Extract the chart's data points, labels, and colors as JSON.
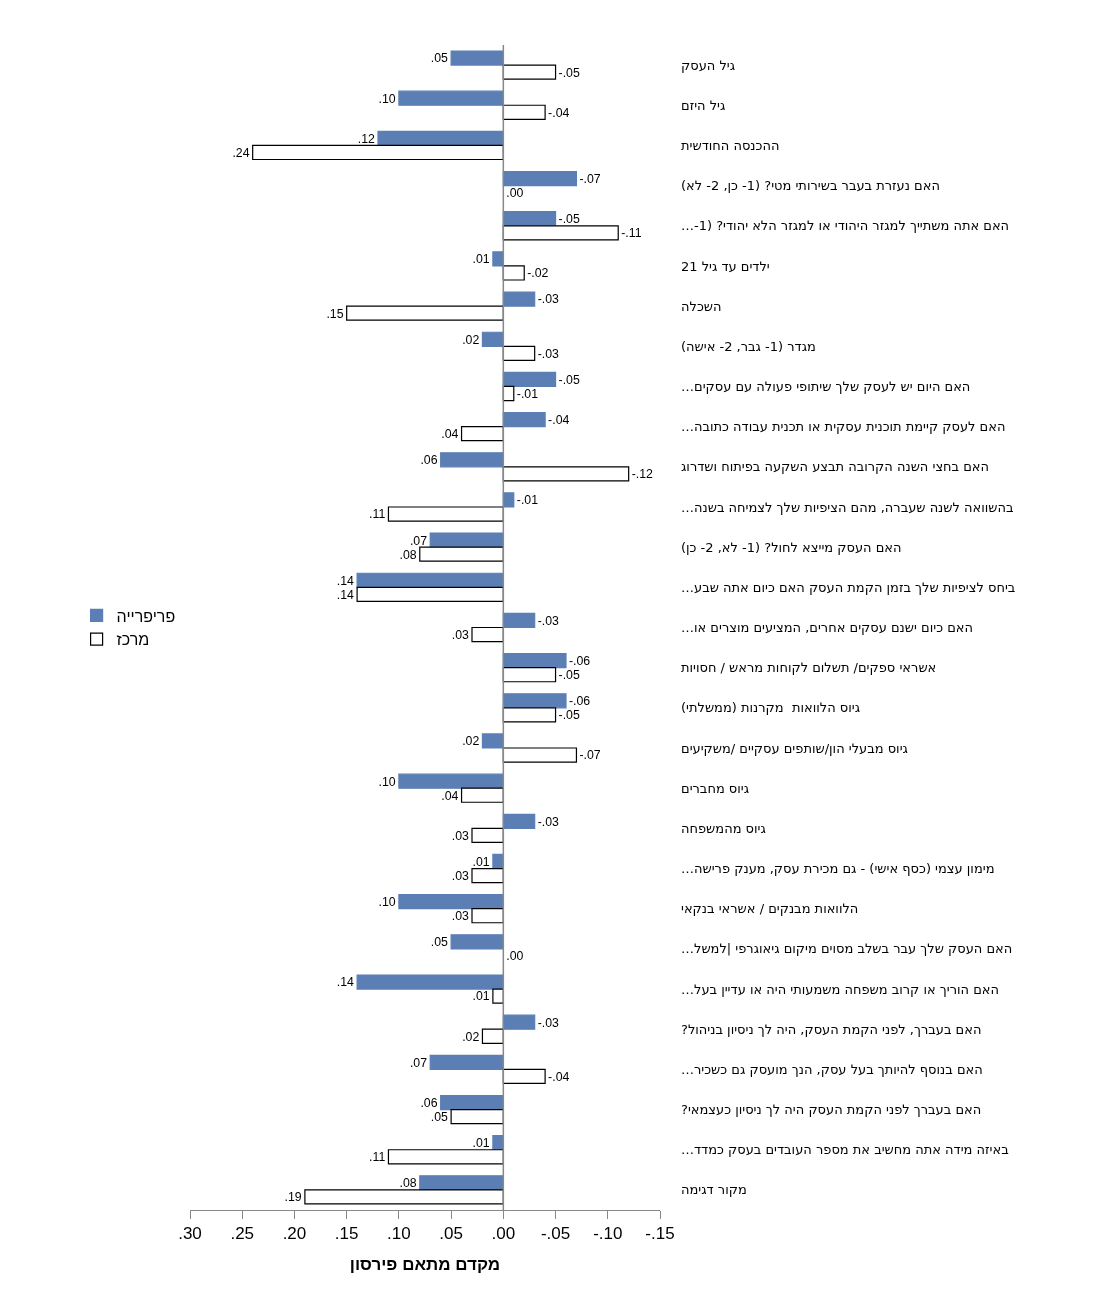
{
  "chart_data": {
    "type": "bar",
    "orientation": "horizontal",
    "xlabel": "מקדם מתאם פירסון",
    "categories": [
      "גיל העסק",
      "גיל היזם",
      "ההכנסה החודשית",
      "האם נעזרת בעבר בשירותי מטי? (1- כן, 2- לא)",
      "האם אתה משתייך למגזר היהודי או למגזר הלא יהודי? (1-…",
      "ילדים עד גיל 21",
      "השכלה",
      "מגדר (1- גבר, 2- אישה)",
      "האם היום יש לעסק שלך שיתופי פעולה עם עסקים…",
      "האם לעסק קיימת תוכנית עסקית או תכנית עבודה כתובה…",
      "האם בחצי השנה הקרובה תבצע השקעה בפיתוח ושדרוג",
      "בהשוואה לשנה שעברה, מהם הציפיות שלך לצמיחה בשנה…",
      "האם העסק מייצא לחול? (1- לא, 2- כן)",
      "ביחס לציפיות שלך בזמן הקמת העסק האם כיום אתה שבע…",
      "האם כיום ישנם עסקים אחרים, המציעים מוצרים או…",
      "אשראי ספקים/ תשלום לקוחות מראש / חסויות",
      "גיוס הלוואות  מקרנות (ממשלתי)",
      "גיוס מבעלי הון/שותפים עסקיים /משקיעים",
      "גיוס מחברים",
      "גיוס מהמשפחה",
      "מימון עצמי (כסף אישי) - גם מכירת עסק, מענק פרישה…",
      "הלוואות מבנקים / אשראי בנקאי",
      "האם העסק שלך עבר בשלב מסוים מיקום גיאוגרפי |למשל…",
      "האם הוריך או קרוב משפחה משמעותי היה או עדיין בעל…",
      "האם בעברך, לפני הקמת העסק, היה לך ניסיון בניהול?",
      "האם בנוסף להיותך בעל עסק, הנך מועסק גם כשכיר…",
      "האם בעברך לפני הקמת העסק היה לך ניסיון כעצמאי?",
      "באיזה מידה אתה מחשיב את מספר העובדים בעסק כמדד…",
      "מקור דגימה"
    ],
    "series": [
      {
        "name": "פריפרייה",
        "color": "#5b7fb5",
        "values": [
          0.05,
          0.1,
          0.12,
          -0.07,
          -0.05,
          0.01,
          -0.03,
          0.02,
          -0.05,
          -0.04,
          0.06,
          -0.01,
          0.07,
          0.14,
          -0.03,
          -0.06,
          -0.06,
          0.02,
          0.1,
          -0.03,
          0.01,
          0.1,
          0.05,
          0.14,
          -0.03,
          0.07,
          0.06,
          0.01,
          0.08
        ],
        "value_labels": [
          ".05",
          ".10",
          ".12",
          "-.07",
          "-.05",
          ".01",
          "-.03",
          ".02",
          "-.05",
          "-.04",
          ".06",
          "-.01",
          ".07",
          ".14",
          "-.03",
          "-.06",
          "-.06",
          ".02",
          ".10",
          "-.03",
          ".01",
          ".10",
          ".05",
          ".14",
          "-.03",
          ".07",
          ".06",
          ".01",
          ".08"
        ]
      },
      {
        "name": "מרכז",
        "color": "#ffffff",
        "values": [
          -0.05,
          -0.04,
          0.24,
          0.0,
          -0.11,
          -0.02,
          0.15,
          -0.03,
          -0.01,
          0.04,
          -0.12,
          0.11,
          0.08,
          0.14,
          0.03,
          -0.05,
          -0.05,
          -0.07,
          0.04,
          0.03,
          0.03,
          0.03,
          0.0,
          0.01,
          0.02,
          -0.04,
          0.05,
          0.11,
          0.19
        ],
        "value_labels": [
          "-.05",
          "-.04",
          ".24",
          ".00",
          "-.11",
          "-.02",
          ".15",
          "-.03",
          "-.01",
          ".04",
          "-.12",
          ".11",
          ".08",
          ".14",
          ".03",
          "-.05",
          "-.05",
          "-.07",
          ".04",
          ".03",
          ".03",
          ".03",
          ".00",
          ".01",
          ".02",
          "-.04",
          ".05",
          ".11",
          ".19"
        ]
      }
    ],
    "xlim": [
      0.3,
      -0.15
    ],
    "xticks": [
      {
        "value": 0.3,
        "label": ".30"
      },
      {
        "value": 0.25,
        "label": ".25"
      },
      {
        "value": 0.2,
        "label": ".20"
      },
      {
        "value": 0.15,
        "label": ".15"
      },
      {
        "value": 0.1,
        "label": ".10"
      },
      {
        "value": 0.05,
        "label": ".05"
      },
      {
        "value": 0.0,
        "label": ".00"
      },
      {
        "value": -0.05,
        "label": "-.05"
      },
      {
        "value": -0.1,
        "label": "-.10"
      },
      {
        "value": -0.15,
        "label": "-.15"
      }
    ],
    "ref_lines": [
      {
        "axis": "x",
        "value": 0,
        "color": "#888888",
        "line_style": "solid"
      }
    ],
    "legend": "left"
  }
}
